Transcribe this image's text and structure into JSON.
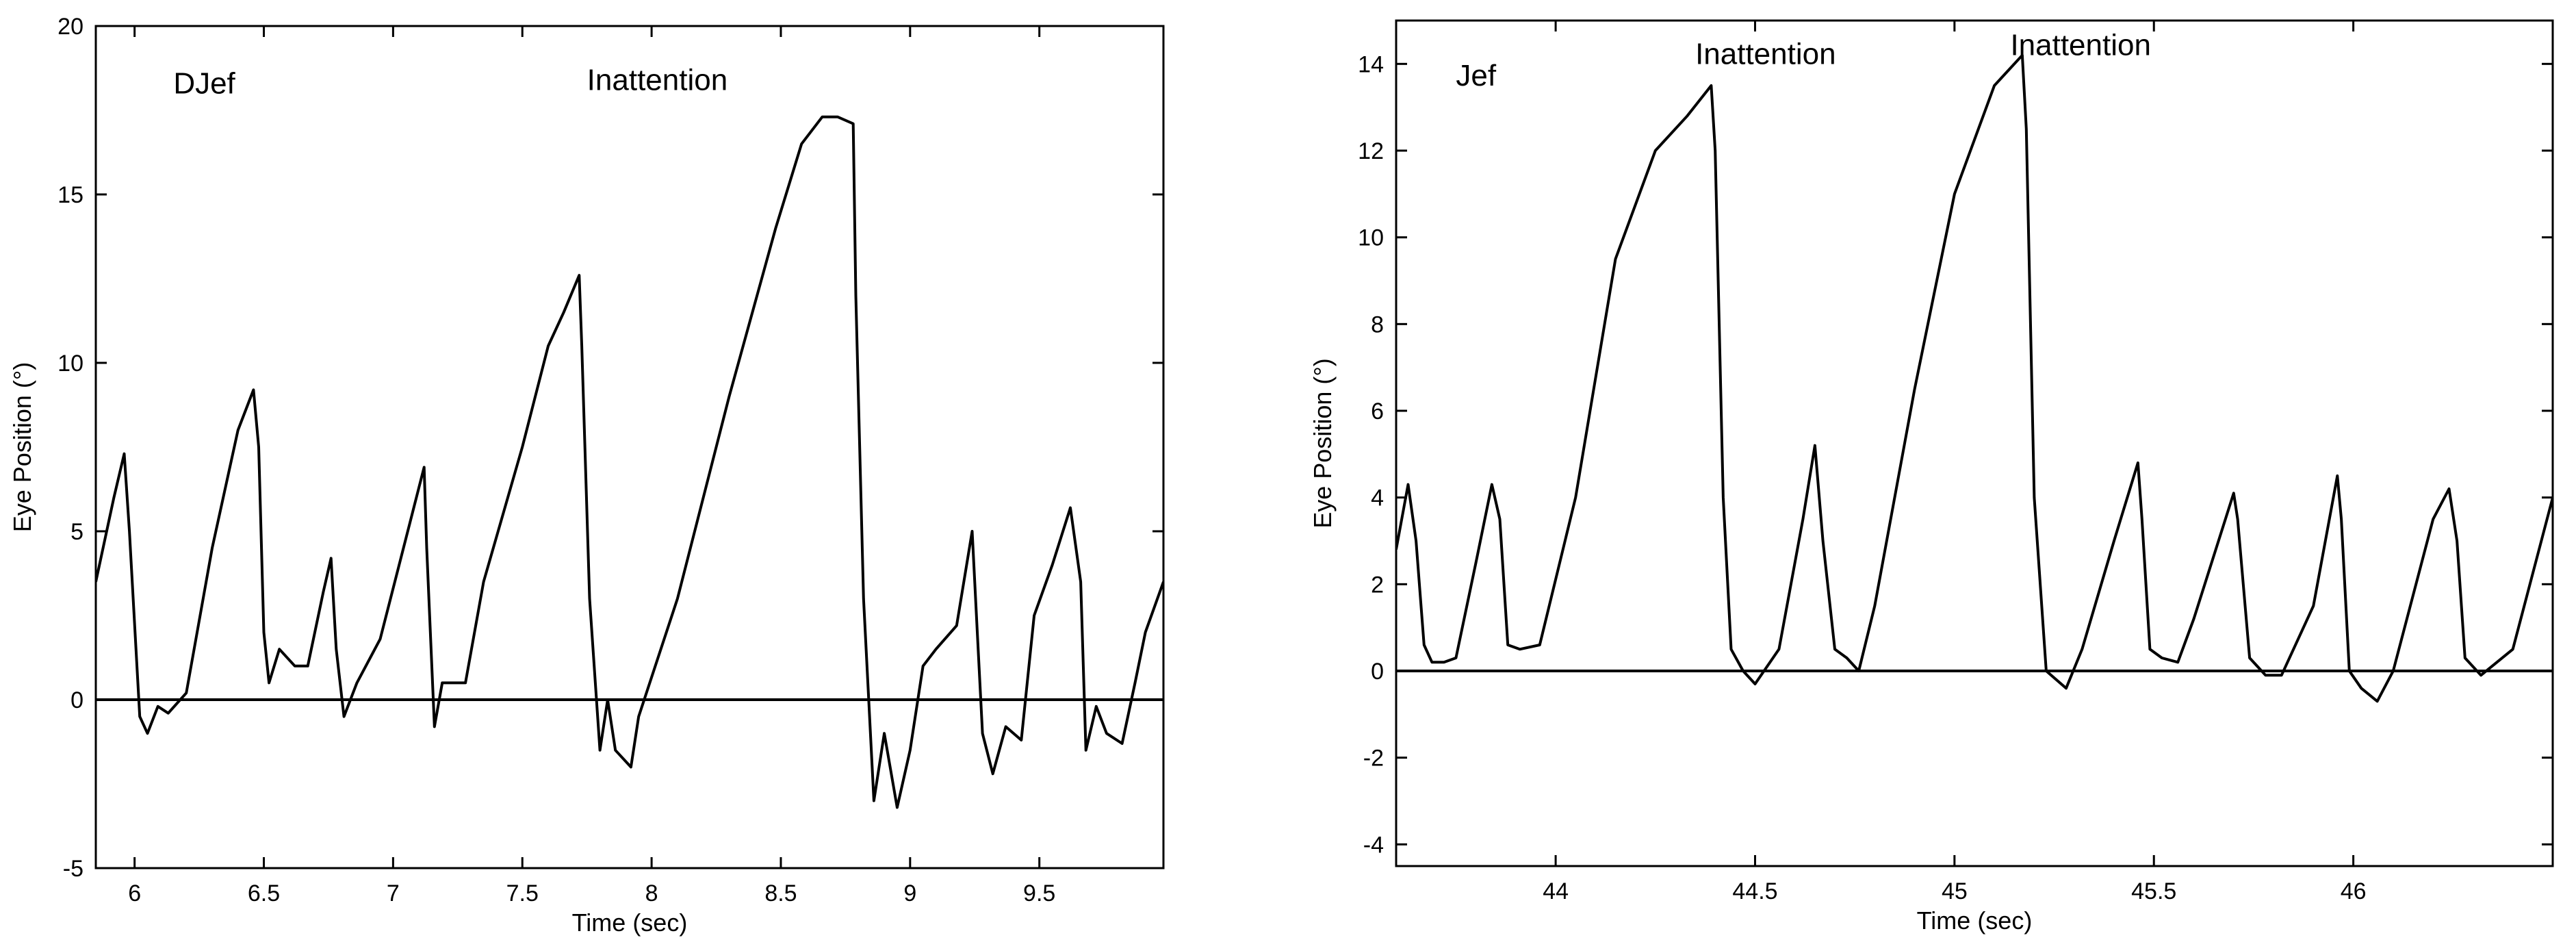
{
  "chart_data": [
    {
      "type": "line",
      "xlabel": "Time (sec)",
      "ylabel": "Eye Position (°)",
      "xlim": [
        5.85,
        9.98
      ],
      "ylim": [
        -5,
        20
      ],
      "xticks": [
        6,
        6.5,
        7,
        7.5,
        8,
        8.5,
        9,
        9.5
      ],
      "xtick_labels": [
        "6",
        "6.5",
        "7",
        "7.5",
        "8",
        "8.5",
        "9",
        "9.5"
      ],
      "yticks": [
        -5,
        0,
        5,
        10,
        15,
        20
      ],
      "ytick_labels": [
        "-5",
        "0",
        "5",
        "10",
        "15",
        "20"
      ],
      "grid": false,
      "zero_line": true,
      "annotations": [
        {
          "text": "DJef",
          "x": 6.15,
          "y": 18.0
        },
        {
          "text": "Inattention",
          "x": 7.75,
          "y": 18.1
        }
      ],
      "series": [
        {
          "x": [
            5.85,
            5.92,
            5.96,
            5.98,
            6.02,
            6.05,
            6.09,
            6.13,
            6.2,
            6.3,
            6.4,
            6.46,
            6.48,
            6.5,
            6.52,
            6.56,
            6.62,
            6.67,
            6.73,
            6.76,
            6.78,
            6.81,
            6.86,
            6.95,
            7.05,
            7.12,
            7.13,
            7.16,
            7.19,
            7.23,
            7.28,
            7.35,
            7.5,
            7.6,
            7.66,
            7.72,
            7.73,
            7.76,
            7.8,
            7.83,
            7.86,
            7.92,
            7.95,
            8.1,
            8.3,
            8.48,
            8.58,
            8.66,
            8.72,
            8.78,
            8.79,
            8.82,
            8.86,
            8.9,
            8.95,
            9.0,
            9.05,
            9.1,
            9.18,
            9.24,
            9.26,
            9.28,
            9.32,
            9.37,
            9.43,
            9.48,
            9.55,
            9.62,
            9.66,
            9.68,
            9.72,
            9.76,
            9.82,
            9.87,
            9.91,
            9.98
          ],
          "y": [
            3.5,
            6.0,
            7.3,
            5.0,
            -0.5,
            -1.0,
            -0.2,
            -0.4,
            0.2,
            4.5,
            8.0,
            9.2,
            7.5,
            2.0,
            0.5,
            1.5,
            1.0,
            1.0,
            3.2,
            4.2,
            1.5,
            -0.5,
            0.5,
            1.8,
            4.8,
            6.9,
            4.5,
            -0.8,
            0.5,
            0.5,
            0.5,
            3.5,
            7.5,
            10.5,
            11.5,
            12.6,
            10.5,
            3.0,
            -1.5,
            0.0,
            -1.5,
            -2.0,
            -0.5,
            3.0,
            9.0,
            14.0,
            16.5,
            17.3,
            17.3,
            17.1,
            12.0,
            3.0,
            -3.0,
            -1.0,
            -3.2,
            -1.5,
            1.0,
            1.5,
            2.2,
            5.0,
            2.0,
            -1.0,
            -2.2,
            -0.8,
            -1.2,
            2.5,
            4.0,
            5.7,
            3.5,
            -1.5,
            -0.2,
            -1.0,
            -1.3,
            0.5,
            2.0,
            3.5
          ]
        }
      ]
    },
    {
      "type": "line",
      "xlabel": "Time (sec)",
      "ylabel": "Eye Position (°)",
      "xlim": [
        43.6,
        46.5
      ],
      "ylim": [
        -4.5,
        15
      ],
      "xticks": [
        44,
        44.5,
        45,
        45.5,
        46
      ],
      "xtick_labels": [
        "44",
        "44.5",
        "45",
        "45.5",
        "46"
      ],
      "yticks": [
        -4,
        -2,
        0,
        2,
        4,
        6,
        8,
        10,
        12,
        14
      ],
      "ytick_labels": [
        "-4",
        "-2",
        "0",
        "2",
        "4",
        "6",
        "8",
        "10",
        "12",
        "14"
      ],
      "grid": false,
      "zero_line": true,
      "annotations": [
        {
          "text": "Jef",
          "x": 43.75,
          "y": 13.5
        },
        {
          "text": "Inattention",
          "x": 44.35,
          "y": 14.0
        },
        {
          "text": "Inattention",
          "x": 45.14,
          "y": 14.2
        }
      ],
      "series": [
        {
          "x": [
            43.6,
            43.63,
            43.65,
            43.67,
            43.69,
            43.72,
            43.75,
            43.8,
            43.84,
            43.86,
            43.88,
            43.91,
            43.96,
            44.05,
            44.15,
            44.25,
            44.33,
            44.39,
            44.4,
            44.42,
            44.44,
            44.47,
            44.5,
            44.56,
            44.62,
            44.65,
            44.67,
            44.7,
            44.73,
            44.76,
            44.8,
            44.9,
            45.0,
            45.1,
            45.17,
            45.18,
            45.2,
            45.23,
            45.28,
            45.32,
            45.4,
            45.46,
            45.47,
            45.49,
            45.52,
            45.56,
            45.6,
            45.7,
            45.71,
            45.74,
            45.78,
            45.82,
            45.9,
            45.96,
            45.97,
            45.99,
            46.02,
            46.06,
            46.1,
            46.2,
            46.24,
            46.26,
            46.28,
            46.32,
            46.4,
            46.5
          ],
          "y": [
            2.8,
            4.3,
            3.0,
            0.6,
            0.2,
            0.2,
            0.3,
            2.5,
            4.3,
            3.5,
            0.6,
            0.5,
            0.6,
            4.0,
            9.5,
            12.0,
            12.8,
            13.5,
            12.0,
            4.0,
            0.5,
            0.0,
            -0.3,
            0.5,
            3.5,
            5.2,
            3.0,
            0.5,
            0.3,
            0.0,
            1.5,
            6.5,
            11.0,
            13.5,
            14.2,
            12.5,
            4.0,
            0.0,
            -0.4,
            0.5,
            3.0,
            4.8,
            3.5,
            0.5,
            0.3,
            0.2,
            1.2,
            4.1,
            3.5,
            0.3,
            -0.1,
            -0.1,
            1.5,
            4.5,
            3.5,
            0.0,
            -0.4,
            -0.7,
            0.0,
            3.5,
            4.2,
            3.0,
            0.3,
            -0.1,
            0.5,
            4.0
          ]
        }
      ]
    }
  ]
}
